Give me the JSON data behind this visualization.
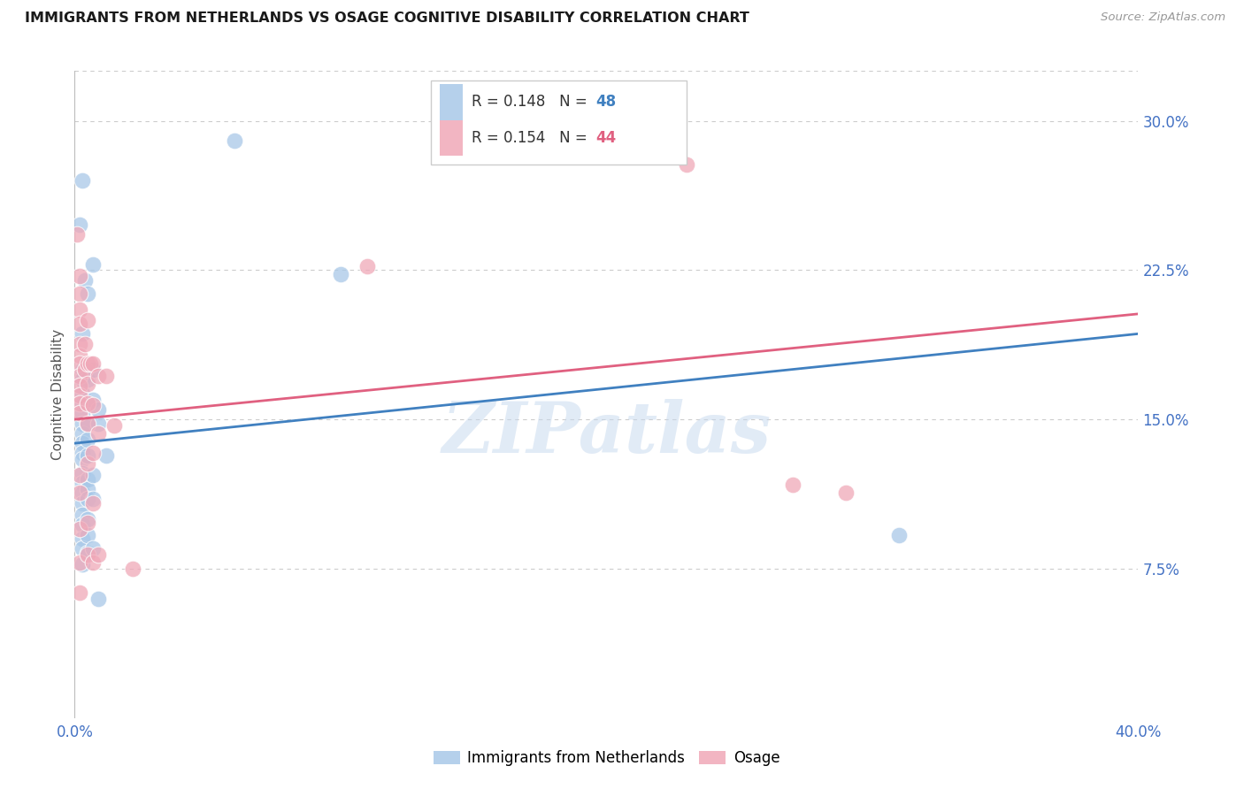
{
  "title": "IMMIGRANTS FROM NETHERLANDS VS OSAGE COGNITIVE DISABILITY CORRELATION CHART",
  "source": "Source: ZipAtlas.com",
  "ylabel": "Cognitive Disability",
  "xmin": 0.0,
  "xmax": 0.4,
  "ymin": 0.0,
  "ymax": 0.325,
  "yticks": [
    0.075,
    0.15,
    0.225,
    0.3
  ],
  "ytick_labels": [
    "7.5%",
    "15.0%",
    "22.5%",
    "30.0%"
  ],
  "legend_blue_R": "R = 0.148",
  "legend_blue_N": "N = 48",
  "legend_pink_R": "R = 0.154",
  "legend_pink_N": "N = 44",
  "blue_series_label": "Immigrants from Netherlands",
  "pink_series_label": "Osage",
  "blue_color": "#A8C8E8",
  "pink_color": "#F0A8B8",
  "blue_line_color": "#4080C0",
  "pink_line_color": "#E06080",
  "blue_scatter": [
    [
      0.002,
      0.248
    ],
    [
      0.003,
      0.27
    ],
    [
      0.003,
      0.193
    ],
    [
      0.003,
      0.175
    ],
    [
      0.003,
      0.17
    ],
    [
      0.003,
      0.163
    ],
    [
      0.003,
      0.158
    ],
    [
      0.003,
      0.153
    ],
    [
      0.003,
      0.148
    ],
    [
      0.003,
      0.143
    ],
    [
      0.003,
      0.138
    ],
    [
      0.003,
      0.133
    ],
    [
      0.003,
      0.13
    ],
    [
      0.003,
      0.123
    ],
    [
      0.003,
      0.118
    ],
    [
      0.003,
      0.113
    ],
    [
      0.003,
      0.108
    ],
    [
      0.003,
      0.102
    ],
    [
      0.003,
      0.097
    ],
    [
      0.003,
      0.09
    ],
    [
      0.003,
      0.085
    ],
    [
      0.003,
      0.077
    ],
    [
      0.004,
      0.22
    ],
    [
      0.005,
      0.213
    ],
    [
      0.005,
      0.17
    ],
    [
      0.005,
      0.148
    ],
    [
      0.005,
      0.14
    ],
    [
      0.005,
      0.132
    ],
    [
      0.005,
      0.12
    ],
    [
      0.005,
      0.115
    ],
    [
      0.005,
      0.11
    ],
    [
      0.005,
      0.1
    ],
    [
      0.005,
      0.092
    ],
    [
      0.005,
      0.083
    ],
    [
      0.007,
      0.228
    ],
    [
      0.007,
      0.175
    ],
    [
      0.007,
      0.16
    ],
    [
      0.007,
      0.122
    ],
    [
      0.007,
      0.11
    ],
    [
      0.007,
      0.085
    ],
    [
      0.009,
      0.155
    ],
    [
      0.009,
      0.148
    ],
    [
      0.009,
      0.06
    ],
    [
      0.012,
      0.132
    ],
    [
      0.06,
      0.29
    ],
    [
      0.1,
      0.223
    ],
    [
      0.175,
      0.295
    ],
    [
      0.31,
      0.092
    ]
  ],
  "pink_scatter": [
    [
      0.001,
      0.243
    ],
    [
      0.002,
      0.222
    ],
    [
      0.002,
      0.213
    ],
    [
      0.002,
      0.205
    ],
    [
      0.002,
      0.198
    ],
    [
      0.002,
      0.188
    ],
    [
      0.002,
      0.182
    ],
    [
      0.002,
      0.178
    ],
    [
      0.002,
      0.172
    ],
    [
      0.002,
      0.167
    ],
    [
      0.002,
      0.162
    ],
    [
      0.002,
      0.158
    ],
    [
      0.002,
      0.153
    ],
    [
      0.002,
      0.122
    ],
    [
      0.002,
      0.113
    ],
    [
      0.002,
      0.095
    ],
    [
      0.002,
      0.078
    ],
    [
      0.002,
      0.063
    ],
    [
      0.004,
      0.188
    ],
    [
      0.004,
      0.175
    ],
    [
      0.005,
      0.2
    ],
    [
      0.005,
      0.178
    ],
    [
      0.005,
      0.168
    ],
    [
      0.005,
      0.158
    ],
    [
      0.005,
      0.148
    ],
    [
      0.005,
      0.128
    ],
    [
      0.005,
      0.098
    ],
    [
      0.005,
      0.082
    ],
    [
      0.006,
      0.178
    ],
    [
      0.007,
      0.178
    ],
    [
      0.007,
      0.157
    ],
    [
      0.007,
      0.133
    ],
    [
      0.007,
      0.108
    ],
    [
      0.007,
      0.078
    ],
    [
      0.009,
      0.172
    ],
    [
      0.009,
      0.143
    ],
    [
      0.009,
      0.082
    ],
    [
      0.012,
      0.172
    ],
    [
      0.015,
      0.147
    ],
    [
      0.022,
      0.075
    ],
    [
      0.11,
      0.227
    ],
    [
      0.23,
      0.278
    ],
    [
      0.27,
      0.117
    ],
    [
      0.29,
      0.113
    ]
  ],
  "blue_line": {
    "x0": 0.0,
    "y0": 0.138,
    "x1": 0.4,
    "y1": 0.193
  },
  "pink_line": {
    "x0": 0.0,
    "y0": 0.15,
    "x1": 0.4,
    "y1": 0.203
  },
  "watermark": "ZIPatlas",
  "background_color": "#ffffff",
  "grid_color": "#cccccc"
}
